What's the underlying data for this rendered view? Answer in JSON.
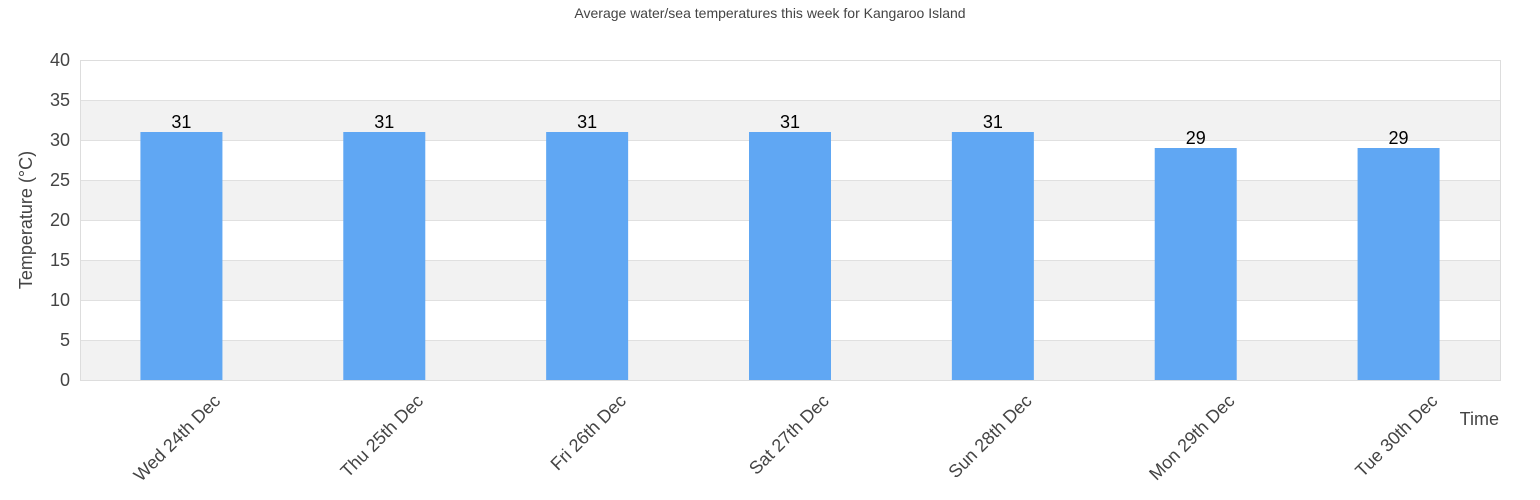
{
  "chart_data": {
    "type": "bar",
    "title": "Average water/sea temperatures this week for Kangaroo Island",
    "xlabel": "Time",
    "ylabel": "Temperature (°C)",
    "categories": [
      "Wed 24th Dec",
      "Thu 25th Dec",
      "Fri 26th Dec",
      "Sat 27th Dec",
      "Sun 28th Dec",
      "Mon 29th Dec",
      "Tue 30th Dec"
    ],
    "values": [
      31,
      31,
      31,
      31,
      31,
      29,
      29
    ],
    "ylim": [
      0,
      40
    ],
    "yticks": [
      0,
      5,
      10,
      15,
      20,
      25,
      30,
      35,
      40
    ],
    "grid": true,
    "legend": "none",
    "colors": {
      "bar": "#60a7f3",
      "band": "#f2f2f2",
      "grid": "#e0e0e0",
      "border": "#dddddd"
    }
  }
}
